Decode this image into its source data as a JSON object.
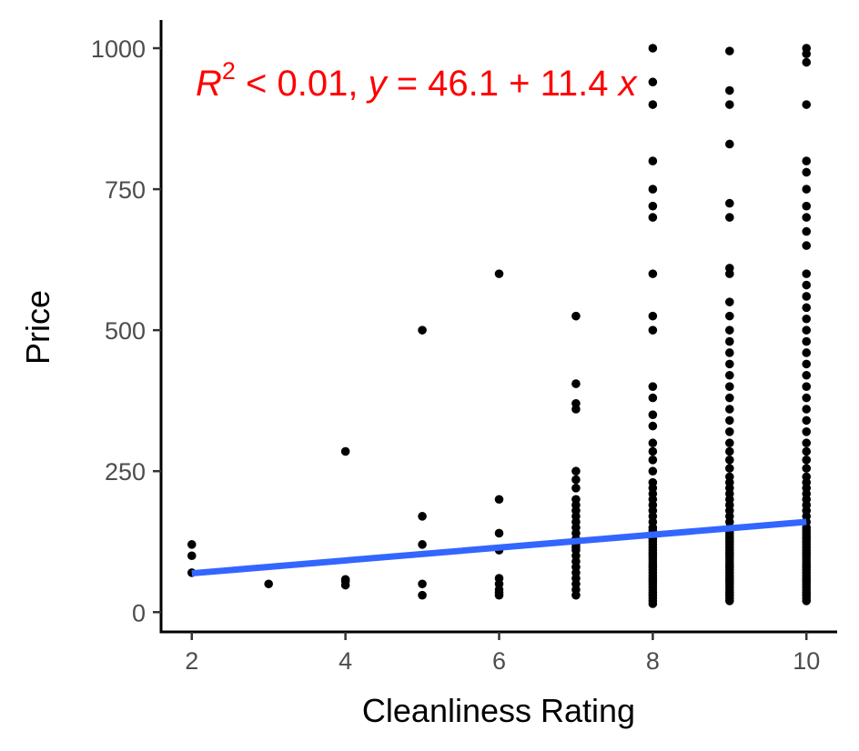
{
  "chart_data": {
    "type": "scatter",
    "xlabel": "Cleanliness Rating",
    "ylabel": "Price",
    "xlim": [
      1.6,
      10.4
    ],
    "ylim": [
      -35,
      1050
    ],
    "x_ticks": [
      2,
      4,
      6,
      8,
      10
    ],
    "y_ticks": [
      0,
      250,
      500,
      750,
      1000
    ],
    "grid": false,
    "annotation": {
      "r2_label": "R",
      "r2_sup": "2",
      "r2_rest": " < 0.01, ",
      "y_var": "y",
      "eq_mid": " = 46.1 + 11.4 ",
      "x_var": "x",
      "color": "#ff0000"
    },
    "regression": {
      "intercept": 46.1,
      "slope": 11.4,
      "x_range": [
        2,
        10
      ],
      "color": "#3366ff"
    },
    "point_color": "#000000",
    "points": [
      [
        2,
        120
      ],
      [
        2,
        100
      ],
      [
        2,
        70
      ],
      [
        3,
        50
      ],
      [
        4,
        285
      ],
      [
        4,
        58
      ],
      [
        4,
        55
      ],
      [
        4,
        48
      ],
      [
        5,
        500
      ],
      [
        5,
        170
      ],
      [
        5,
        120
      ],
      [
        5,
        50
      ],
      [
        5,
        30
      ],
      [
        6,
        600
      ],
      [
        6,
        200
      ],
      [
        6,
        140
      ],
      [
        6,
        110
      ],
      [
        6,
        60
      ],
      [
        6,
        50
      ],
      [
        6,
        40
      ],
      [
        6,
        35
      ],
      [
        6,
        30
      ],
      [
        7,
        525
      ],
      [
        7,
        405
      ],
      [
        7,
        370
      ],
      [
        7,
        360
      ],
      [
        7,
        250
      ],
      [
        7,
        235
      ],
      [
        7,
        220
      ],
      [
        7,
        200
      ],
      [
        7,
        190
      ],
      [
        7,
        180
      ],
      [
        7,
        170
      ],
      [
        7,
        160
      ],
      [
        7,
        150
      ],
      [
        7,
        140
      ],
      [
        7,
        130
      ],
      [
        7,
        125
      ],
      [
        7,
        120
      ],
      [
        7,
        115
      ],
      [
        7,
        110
      ],
      [
        7,
        100
      ],
      [
        7,
        90
      ],
      [
        7,
        80
      ],
      [
        7,
        70
      ],
      [
        7,
        60
      ],
      [
        7,
        50
      ],
      [
        7,
        40
      ],
      [
        7,
        30
      ],
      [
        8,
        1000
      ],
      [
        8,
        940
      ],
      [
        8,
        900
      ],
      [
        8,
        800
      ],
      [
        8,
        750
      ],
      [
        8,
        720
      ],
      [
        8,
        700
      ],
      [
        8,
        600
      ],
      [
        8,
        525
      ],
      [
        8,
        500
      ],
      [
        8,
        400
      ],
      [
        8,
        380
      ],
      [
        8,
        350
      ],
      [
        8,
        330
      ],
      [
        8,
        300
      ],
      [
        8,
        285
      ],
      [
        8,
        270
      ],
      [
        8,
        250
      ],
      [
        8,
        230
      ],
      [
        8,
        220
      ],
      [
        8,
        210
      ],
      [
        8,
        200
      ],
      [
        8,
        190
      ],
      [
        8,
        180
      ],
      [
        8,
        170
      ],
      [
        8,
        160
      ],
      [
        8,
        150
      ],
      [
        8,
        145
      ],
      [
        8,
        140
      ],
      [
        8,
        135
      ],
      [
        8,
        130
      ],
      [
        8,
        125
      ],
      [
        8,
        120
      ],
      [
        8,
        115
      ],
      [
        8,
        110
      ],
      [
        8,
        105
      ],
      [
        8,
        100
      ],
      [
        8,
        95
      ],
      [
        8,
        90
      ],
      [
        8,
        85
      ],
      [
        8,
        80
      ],
      [
        8,
        75
      ],
      [
        8,
        70
      ],
      [
        8,
        65
      ],
      [
        8,
        60
      ],
      [
        8,
        55
      ],
      [
        8,
        50
      ],
      [
        8,
        45
      ],
      [
        8,
        40
      ],
      [
        8,
        35
      ],
      [
        8,
        30
      ],
      [
        8,
        25
      ],
      [
        8,
        20
      ],
      [
        8,
        15
      ],
      [
        9,
        995
      ],
      [
        9,
        925
      ],
      [
        9,
        900
      ],
      [
        9,
        830
      ],
      [
        9,
        725
      ],
      [
        9,
        700
      ],
      [
        9,
        610
      ],
      [
        9,
        600
      ],
      [
        9,
        550
      ],
      [
        9,
        525
      ],
      [
        9,
        500
      ],
      [
        9,
        480
      ],
      [
        9,
        460
      ],
      [
        9,
        440
      ],
      [
        9,
        420
      ],
      [
        9,
        400
      ],
      [
        9,
        380
      ],
      [
        9,
        360
      ],
      [
        9,
        340
      ],
      [
        9,
        320
      ],
      [
        9,
        300
      ],
      [
        9,
        285
      ],
      [
        9,
        270
      ],
      [
        9,
        255
      ],
      [
        9,
        240
      ],
      [
        9,
        230
      ],
      [
        9,
        220
      ],
      [
        9,
        210
      ],
      [
        9,
        200
      ],
      [
        9,
        190
      ],
      [
        9,
        180
      ],
      [
        9,
        170
      ],
      [
        9,
        160
      ],
      [
        9,
        150
      ],
      [
        9,
        145
      ],
      [
        9,
        140
      ],
      [
        9,
        135
      ],
      [
        9,
        130
      ],
      [
        9,
        125
      ],
      [
        9,
        120
      ],
      [
        9,
        115
      ],
      [
        9,
        110
      ],
      [
        9,
        105
      ],
      [
        9,
        100
      ],
      [
        9,
        95
      ],
      [
        9,
        90
      ],
      [
        9,
        85
      ],
      [
        9,
        80
      ],
      [
        9,
        75
      ],
      [
        9,
        70
      ],
      [
        9,
        65
      ],
      [
        9,
        60
      ],
      [
        9,
        55
      ],
      [
        9,
        50
      ],
      [
        9,
        45
      ],
      [
        9,
        40
      ],
      [
        9,
        35
      ],
      [
        9,
        30
      ],
      [
        9,
        25
      ],
      [
        9,
        20
      ],
      [
        10,
        1000
      ],
      [
        10,
        990
      ],
      [
        10,
        975
      ],
      [
        10,
        900
      ],
      [
        10,
        800
      ],
      [
        10,
        780
      ],
      [
        10,
        750
      ],
      [
        10,
        720
      ],
      [
        10,
        700
      ],
      [
        10,
        675
      ],
      [
        10,
        650
      ],
      [
        10,
        600
      ],
      [
        10,
        580
      ],
      [
        10,
        560
      ],
      [
        10,
        540
      ],
      [
        10,
        520
      ],
      [
        10,
        500
      ],
      [
        10,
        480
      ],
      [
        10,
        460
      ],
      [
        10,
        440
      ],
      [
        10,
        420
      ],
      [
        10,
        400
      ],
      [
        10,
        380
      ],
      [
        10,
        360
      ],
      [
        10,
        340
      ],
      [
        10,
        320
      ],
      [
        10,
        300
      ],
      [
        10,
        285
      ],
      [
        10,
        270
      ],
      [
        10,
        255
      ],
      [
        10,
        240
      ],
      [
        10,
        230
      ],
      [
        10,
        220
      ],
      [
        10,
        210
      ],
      [
        10,
        200
      ],
      [
        10,
        190
      ],
      [
        10,
        180
      ],
      [
        10,
        170
      ],
      [
        10,
        160
      ],
      [
        10,
        150
      ],
      [
        10,
        145
      ],
      [
        10,
        140
      ],
      [
        10,
        135
      ],
      [
        10,
        130
      ],
      [
        10,
        125
      ],
      [
        10,
        120
      ],
      [
        10,
        115
      ],
      [
        10,
        110
      ],
      [
        10,
        105
      ],
      [
        10,
        100
      ],
      [
        10,
        95
      ],
      [
        10,
        90
      ],
      [
        10,
        85
      ],
      [
        10,
        80
      ],
      [
        10,
        75
      ],
      [
        10,
        70
      ],
      [
        10,
        65
      ],
      [
        10,
        60
      ],
      [
        10,
        55
      ],
      [
        10,
        50
      ],
      [
        10,
        45
      ],
      [
        10,
        40
      ],
      [
        10,
        35
      ],
      [
        10,
        30
      ],
      [
        10,
        25
      ],
      [
        10,
        20
      ]
    ]
  }
}
